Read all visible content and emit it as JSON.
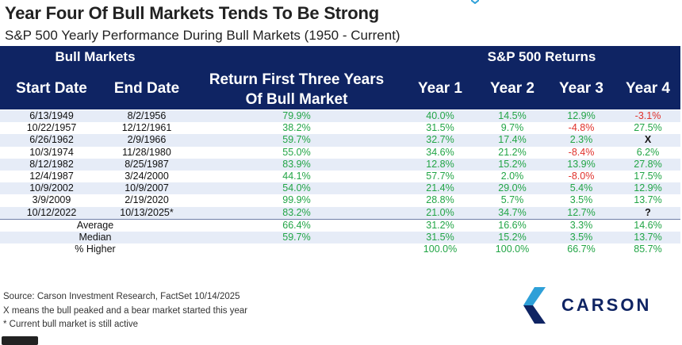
{
  "title": "Year Four Of Bull Markets Tends To Be Strong",
  "subtitle": "S&P 500 Yearly Performance During Bull Markets (1950 - Current)",
  "header": {
    "group_left": "Bull Markets",
    "group_right": "S&P 500 Returns",
    "col_start": "Start Date",
    "col_end": "End Date",
    "col_ret_line1": "Return First Three Years",
    "col_ret_line2": "Of Bull Market",
    "col_y1": "Year 1",
    "col_y2": "Year 2",
    "col_y3": "Year 3",
    "col_y4": "Year 4"
  },
  "rows": [
    {
      "start": "6/13/1949",
      "end": "8/2/1956",
      "ret": "79.9%",
      "y1": "40.0%",
      "y2": "14.5%",
      "y3": "12.9%",
      "y4": "-3.1%"
    },
    {
      "start": "10/22/1957",
      "end": "12/12/1961",
      "ret": "38.2%",
      "y1": "31.5%",
      "y2": "9.7%",
      "y3": "-4.8%",
      "y4": "27.5%"
    },
    {
      "start": "6/26/1962",
      "end": "2/9/1966",
      "ret": "59.7%",
      "y1": "32.7%",
      "y2": "17.4%",
      "y3": "2.3%",
      "y4": "X"
    },
    {
      "start": "10/3/1974",
      "end": "11/28/1980",
      "ret": "55.0%",
      "y1": "34.6%",
      "y2": "21.2%",
      "y3": "-8.4%",
      "y4": "6.2%"
    },
    {
      "start": "8/12/1982",
      "end": "8/25/1987",
      "ret": "83.9%",
      "y1": "12.8%",
      "y2": "15.2%",
      "y3": "13.9%",
      "y4": "27.8%"
    },
    {
      "start": "12/4/1987",
      "end": "3/24/2000",
      "ret": "44.1%",
      "y1": "57.7%",
      "y2": "2.0%",
      "y3": "-8.0%",
      "y4": "17.5%"
    },
    {
      "start": "10/9/2002",
      "end": "10/9/2007",
      "ret": "54.0%",
      "y1": "21.4%",
      "y2": "29.0%",
      "y3": "5.4%",
      "y4": "12.9%"
    },
    {
      "start": "3/9/2009",
      "end": "2/19/2020",
      "ret": "99.9%",
      "y1": "28.8%",
      "y2": "5.7%",
      "y3": "3.5%",
      "y4": "13.7%"
    },
    {
      "start": "10/12/2022",
      "end": "10/13/2025*",
      "ret": "83.2%",
      "y1": "21.0%",
      "y2": "34.7%",
      "y3": "12.7%",
      "y4": "?"
    }
  ],
  "summary": [
    {
      "label": "Average",
      "ret": "66.4%",
      "y1": "31.2%",
      "y2": "16.6%",
      "y3": "3.3%",
      "y4": "14.6%"
    },
    {
      "label": "Median",
      "ret": "59.7%",
      "y1": "31.5%",
      "y2": "15.2%",
      "y3": "3.5%",
      "y4": "13.7%"
    },
    {
      "label": "% Higher",
      "ret": "",
      "y1": "100.0%",
      "y2": "100.0%",
      "y3": "66.7%",
      "y4": "85.7%"
    }
  ],
  "footnotes": {
    "source": "Source: Carson Investment Research, FactSet 10/14/2025",
    "x_note": "X means the bull peaked and a bear market started this year",
    "star_note": "* Current bull market is still active"
  },
  "logo": {
    "name": "CARSON",
    "icon": "carson-chevron-icon"
  },
  "colors": {
    "header_bg": "#0f2463",
    "positive": "#22a546",
    "negative": "#e0312b",
    "stripe": "#e6ecf7"
  }
}
